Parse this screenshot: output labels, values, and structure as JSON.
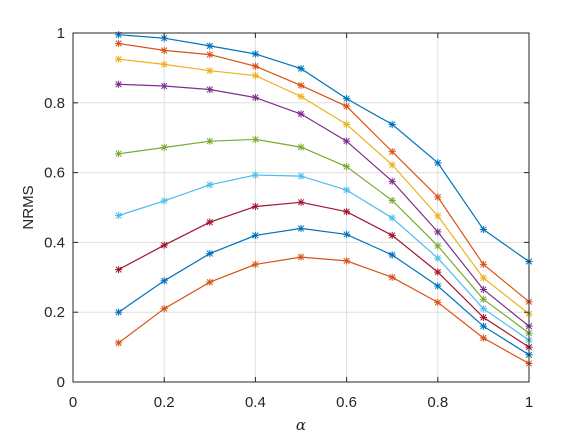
{
  "chart_data": {
    "type": "line",
    "title": "",
    "xlabel": "α",
    "ylabel": "NRMS",
    "xlim": [
      0,
      1
    ],
    "ylim": [
      0,
      1
    ],
    "xticks": [
      0,
      0.2,
      0.4,
      0.6,
      0.8,
      1
    ],
    "yticks": [
      0,
      0.2,
      0.4,
      0.6,
      0.8,
      1
    ],
    "xtick_labels": [
      "0",
      "0.2",
      "0.4",
      "0.6",
      "0.8",
      "1"
    ],
    "ytick_labels": [
      "0",
      "0.2",
      "0.4",
      "0.6",
      "0.8",
      "1"
    ],
    "grid": true,
    "marker": "asterisk",
    "x": [
      0.1,
      0.2,
      0.3,
      0.4,
      0.5,
      0.6,
      0.7,
      0.8,
      0.9,
      1.0
    ],
    "series": [
      {
        "color": "#0072BD",
        "values": [
          0.995,
          0.985,
          0.963,
          0.94,
          0.898,
          0.812,
          0.738,
          0.628,
          0.437,
          0.345
        ]
      },
      {
        "color": "#D95319",
        "values": [
          0.97,
          0.95,
          0.938,
          0.905,
          0.85,
          0.79,
          0.66,
          0.53,
          0.337,
          0.23
        ]
      },
      {
        "color": "#EDB120",
        "values": [
          0.925,
          0.91,
          0.892,
          0.878,
          0.818,
          0.738,
          0.622,
          0.476,
          0.298,
          0.195
        ]
      },
      {
        "color": "#7E2F8E",
        "values": [
          0.853,
          0.848,
          0.838,
          0.815,
          0.768,
          0.69,
          0.575,
          0.43,
          0.265,
          0.16
        ]
      },
      {
        "color": "#77AC30",
        "values": [
          0.654,
          0.672,
          0.69,
          0.695,
          0.673,
          0.617,
          0.52,
          0.39,
          0.237,
          0.14
        ]
      },
      {
        "color": "#4DBEEE",
        "values": [
          0.477,
          0.519,
          0.565,
          0.593,
          0.59,
          0.55,
          0.47,
          0.355,
          0.21,
          0.12
        ]
      },
      {
        "color": "#A2142F",
        "values": [
          0.322,
          0.392,
          0.458,
          0.503,
          0.515,
          0.488,
          0.42,
          0.315,
          0.185,
          0.1
        ]
      },
      {
        "color": "#0072BD",
        "values": [
          0.2,
          0.29,
          0.368,
          0.42,
          0.44,
          0.423,
          0.364,
          0.275,
          0.16,
          0.078
        ]
      },
      {
        "color": "#D95319",
        "values": [
          0.112,
          0.21,
          0.286,
          0.337,
          0.358,
          0.347,
          0.3,
          0.228,
          0.126,
          0.053
        ]
      }
    ]
  }
}
